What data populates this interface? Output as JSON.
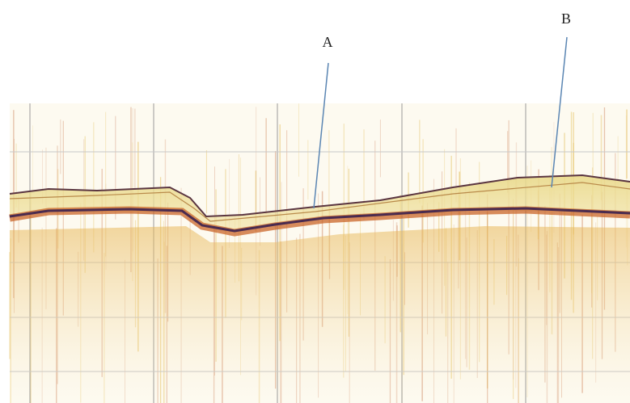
{
  "annotations": [
    {
      "label": "A"
    },
    {
      "label": "B"
    }
  ]
}
